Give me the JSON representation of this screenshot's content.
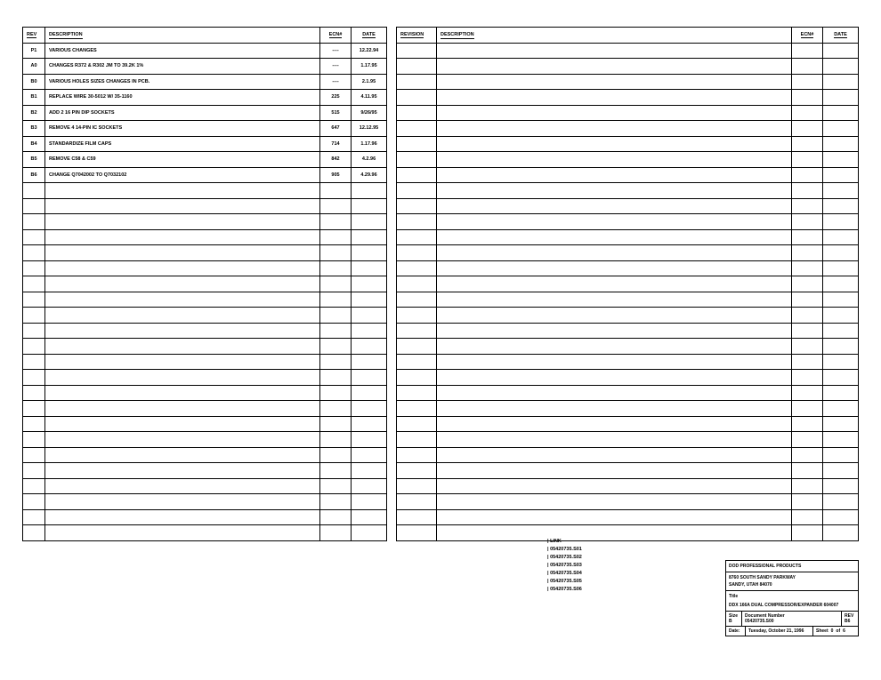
{
  "left_table": {
    "headers": {
      "rev": "REV",
      "desc": "DESCRIPTION",
      "ecns": "ECN#",
      "date": "DATE"
    },
    "rows": [
      {
        "rev": "P1",
        "desc": "VARIOUS CHANGES",
        "ecns": "----",
        "date": "12.22.94"
      },
      {
        "rev": "A0",
        "desc": "CHANGES R372 & R302 JM TO 39.2K 1%",
        "ecns": "----",
        "date": "1.17.95"
      },
      {
        "rev": "B0",
        "desc": "VARIOUS HOLES SIZES CHANGES IN PCB.",
        "ecns": "----",
        "date": "2.1.95"
      },
      {
        "rev": "B1",
        "desc": "REPLACE WIRE 30-5012 W/ 35-1160",
        "ecns": "225",
        "date": "4.11.95"
      },
      {
        "rev": "B2",
        "desc": "ADD 2 16 PIN DIP SOCKETS",
        "ecns": "515",
        "date": "9/26/95"
      },
      {
        "rev": "B3",
        "desc": "REMOVE 4 14-PIN IC SOCKETS",
        "ecns": "647",
        "date": "12.12.95"
      },
      {
        "rev": "B4",
        "desc": "STANDARDIZE FILM CAPS",
        "ecns": "714",
        "date": "1.17.96"
      },
      {
        "rev": "B5",
        "desc": "REMOVE C58 & C59",
        "ecns": "842",
        "date": "4.2.96"
      },
      {
        "rev": "B6",
        "desc": "CHANGE Q7042002 TO Q7032102",
        "ecns": "905",
        "date": "4.29.96"
      }
    ],
    "blank_rows": 23
  },
  "right_table": {
    "headers": {
      "rev": "REVISION",
      "desc": "DESCRIPTION",
      "ecns": "ECN#",
      "date": "DATE"
    },
    "blank_rows": 32
  },
  "link_block": {
    "title": "| LINK",
    "items": [
      "| 05420735.S01",
      "| 05420735.S02",
      "| 05420735.S03",
      "| 05420735.S04",
      "| 05420735.S05",
      "| 05420735.S06"
    ]
  },
  "titleblock": {
    "company": "DOD PROFESSIONAL PRODUCTS",
    "address1": "8760 SOUTH SANDY PARKWAY",
    "address2": "SANDY, UTAH 84070",
    "title_label": "Title",
    "title": "DDX 166A DUAL COMPRESSOR/EXPANDER 604007",
    "size_label": "Size",
    "size": "B",
    "doc_label": "Document Number",
    "doc": "05420735.S00",
    "rev_label": "REV",
    "rev": "B6",
    "date": "Tuesday, October 21, 1996",
    "sheet_prefix": "Sheet",
    "sheet_of": "0",
    "sheet_total": "6",
    "date_label": "Date:"
  }
}
